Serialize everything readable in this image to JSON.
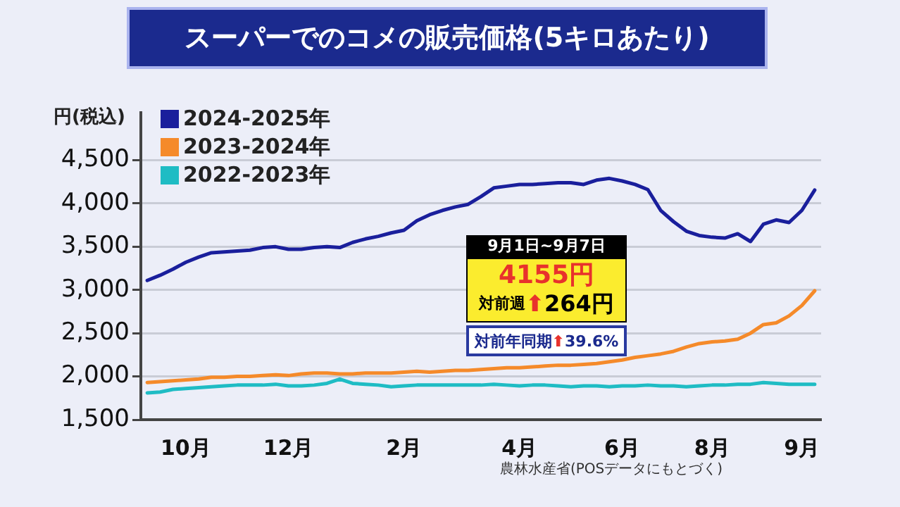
{
  "chart_data": {
    "type": "line",
    "title": "スーパーでのコメの販売価格(5キロあたり)",
    "ylabel": "円(税込)",
    "categories": [
      null,
      null,
      null,
      "10月",
      null,
      null,
      null,
      null,
      null,
      null,
      null,
      "12月",
      null,
      null,
      null,
      null,
      null,
      null,
      null,
      null,
      "2月",
      null,
      null,
      null,
      null,
      null,
      null,
      null,
      null,
      "4月",
      null,
      null,
      null,
      null,
      null,
      null,
      null,
      "6月",
      null,
      null,
      null,
      null,
      null,
      null,
      "8月",
      null,
      null,
      null,
      null,
      null,
      null,
      "9月",
      null
    ],
    "series": [
      {
        "name": "2024-2025年",
        "color": "#1a1f9c",
        "values": [
          3110,
          3170,
          3240,
          3320,
          3380,
          3430,
          3440,
          3450,
          3460,
          3490,
          3500,
          3470,
          3470,
          3490,
          3500,
          3490,
          3550,
          3590,
          3620,
          3660,
          3690,
          3800,
          3870,
          3920,
          3960,
          3990,
          4080,
          4180,
          4200,
          4220,
          4220,
          4230,
          4240,
          4240,
          4220,
          4270,
          4290,
          4260,
          4220,
          4160,
          3920,
          3790,
          3680,
          3630,
          3610,
          3600,
          3650,
          3560,
          3760,
          3810,
          3780,
          3920,
          4155
        ]
      },
      {
        "name": "2023-2024年",
        "color": "#f58a2a",
        "values": [
          1930,
          1940,
          1950,
          1960,
          1970,
          1990,
          1990,
          2000,
          2000,
          2010,
          2020,
          2010,
          2030,
          2040,
          2040,
          2030,
          2030,
          2040,
          2040,
          2040,
          2050,
          2060,
          2050,
          2060,
          2070,
          2070,
          2080,
          2090,
          2100,
          2100,
          2110,
          2120,
          2130,
          2130,
          2140,
          2150,
          2170,
          2190,
          2220,
          2240,
          2260,
          2290,
          2340,
          2380,
          2400,
          2410,
          2430,
          2500,
          2600,
          2620,
          2700,
          2820,
          2990
        ]
      },
      {
        "name": "2022-2023年",
        "color": "#1fbcc4",
        "values": [
          1810,
          1820,
          1850,
          1860,
          1870,
          1880,
          1890,
          1900,
          1900,
          1900,
          1910,
          1890,
          1890,
          1900,
          1920,
          1970,
          1920,
          1910,
          1900,
          1880,
          1890,
          1900,
          1900,
          1900,
          1900,
          1900,
          1900,
          1910,
          1900,
          1890,
          1900,
          1900,
          1890,
          1880,
          1890,
          1890,
          1880,
          1890,
          1890,
          1900,
          1890,
          1890,
          1880,
          1890,
          1900,
          1900,
          1910,
          1910,
          1930,
          1920,
          1910,
          1910,
          1910
        ]
      }
    ],
    "ylim": [
      1500,
      5050
    ],
    "yticks": [
      {
        "value": 1500,
        "label": "1,500"
      },
      {
        "value": 2000,
        "label": "2,000"
      },
      {
        "value": 2500,
        "label": "2,500"
      },
      {
        "value": 3000,
        "label": "3,000"
      },
      {
        "value": 3500,
        "label": "3,500"
      },
      {
        "value": 4000,
        "label": "4,000"
      },
      {
        "value": 4500,
        "label": "4,500"
      }
    ],
    "grid": "y",
    "legend": "top left",
    "marker": "none",
    "line_style": "solid",
    "annotations": [
      "9月1日~9月7日",
      "4155円",
      "対前週⬆264円",
      "対前年同期⬆39.6%",
      "農林水産省(POSデータにもとづく)"
    ]
  }
}
